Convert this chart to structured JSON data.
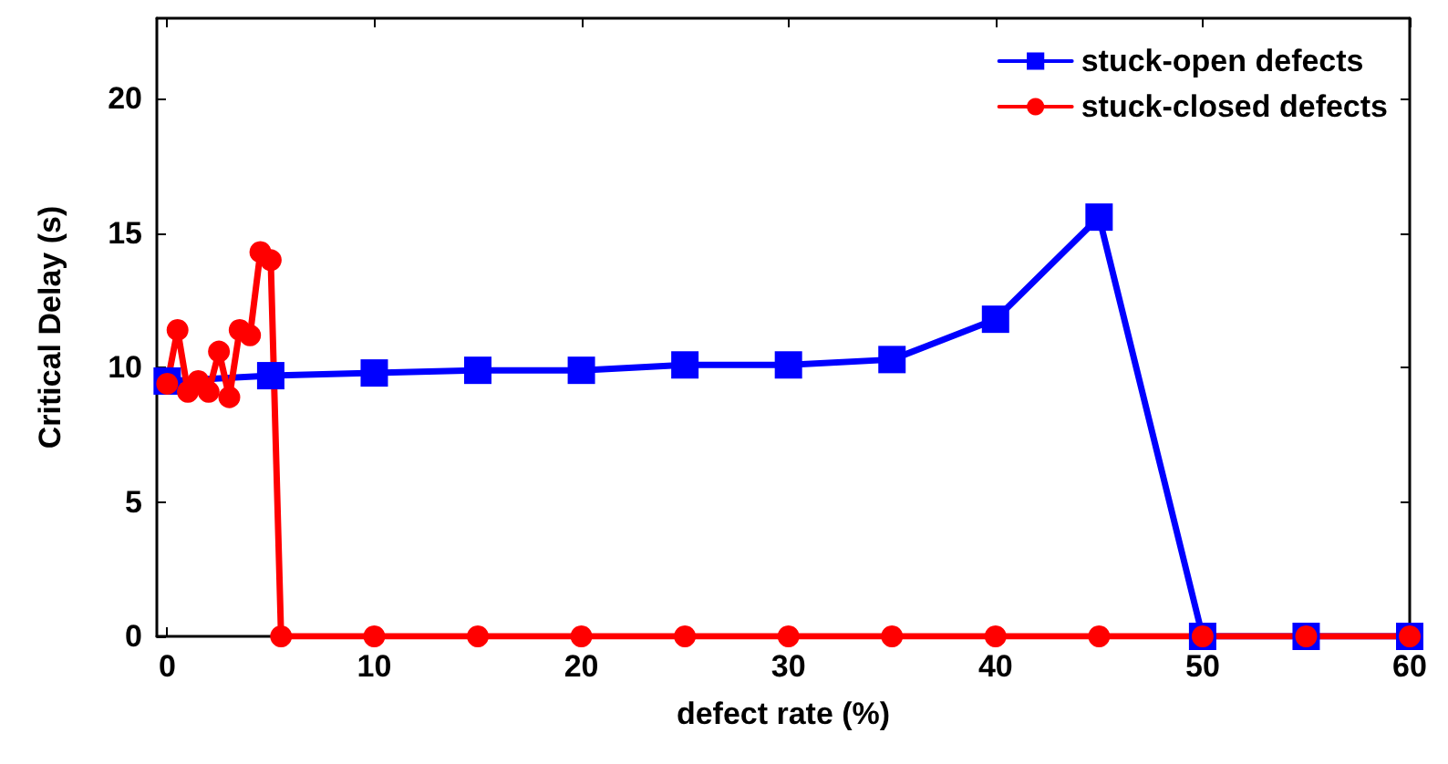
{
  "chart_data": {
    "type": "line",
    "xlabel": "defect rate (%)",
    "ylabel": "Critical Delay (s)",
    "xlim": [
      -0.5,
      60
    ],
    "xticks": [
      0,
      10,
      20,
      30,
      40,
      50,
      60
    ],
    "ylim": [
      0,
      23
    ],
    "yticks": [
      0,
      5,
      10,
      15,
      20
    ],
    "grid": false,
    "legend": "top right",
    "series": [
      {
        "name": "stuck-open defects",
        "color": "#0000ff",
        "marker": "square",
        "x": [
          0,
          5,
          10,
          15,
          20,
          25,
          30,
          35,
          40,
          45,
          50,
          55,
          60
        ],
        "values": [
          9.5,
          9.7,
          9.8,
          9.9,
          9.9,
          10.1,
          10.1,
          10.3,
          11.8,
          15.6,
          0,
          0,
          0
        ]
      },
      {
        "name": "stuck-closed defects",
        "color": "#ff0000",
        "marker": "circle",
        "x": [
          0,
          0.5,
          1,
          1.5,
          2,
          2.5,
          3,
          3.5,
          4,
          4.5,
          5,
          5.5,
          10,
          15,
          20,
          25,
          30,
          35,
          40,
          45,
          50,
          55,
          60
        ],
        "values": [
          9.4,
          11.4,
          9.1,
          9.5,
          9.1,
          10.6,
          8.9,
          11.4,
          11.2,
          14.3,
          14,
          0,
          0,
          0,
          0,
          0,
          0,
          0,
          0,
          0,
          0,
          0,
          0
        ]
      }
    ]
  }
}
